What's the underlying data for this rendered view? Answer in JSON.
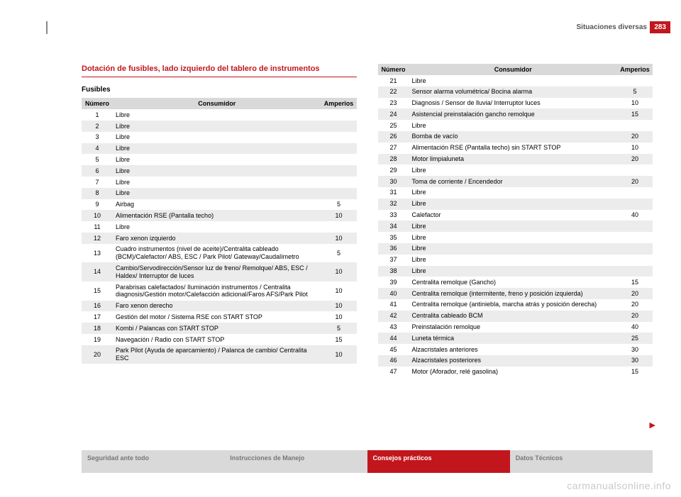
{
  "page": {
    "number": "283",
    "section": "Situaciones diversas"
  },
  "title": "Dotación de fusibles, lado izquierdo del tablero de instrumentos",
  "sub": "Fusibles",
  "headers": {
    "num": "Número",
    "cons": "Consumidor",
    "amp": "Amperios"
  },
  "left_rows": [
    {
      "n": "1",
      "c": "Libre",
      "a": ""
    },
    {
      "n": "2",
      "c": "Libre",
      "a": ""
    },
    {
      "n": "3",
      "c": "Libre",
      "a": ""
    },
    {
      "n": "4",
      "c": "Libre",
      "a": ""
    },
    {
      "n": "5",
      "c": "Libre",
      "a": ""
    },
    {
      "n": "6",
      "c": "Libre",
      "a": ""
    },
    {
      "n": "7",
      "c": "Libre",
      "a": ""
    },
    {
      "n": "8",
      "c": "Libre",
      "a": ""
    },
    {
      "n": "9",
      "c": "Airbag",
      "a": "5"
    },
    {
      "n": "10",
      "c": "Alimentación RSE (Pantalla techo)",
      "a": "10"
    },
    {
      "n": "11",
      "c": "Libre",
      "a": ""
    },
    {
      "n": "12",
      "c": "Faro xenon izquierdo",
      "a": "10"
    },
    {
      "n": "13",
      "c": "Cuadro instrumentos (nivel de aceite)/Centralita cableado (BCM)/Calefactor/ ABS, ESC / Park Pilot/ Gateway/Caudalímetro",
      "a": "5"
    },
    {
      "n": "14",
      "c": "Cambio/Servodirección/Sensor luz de freno/ Remolque/ ABS, ESC / Haldex/ Interruptor de luces",
      "a": "10"
    },
    {
      "n": "15",
      "c": "Parabrisas calefactados/ Iluminación instrumentos / Centralita diagnosis/Gestión motor/Calefacción adicional/Faros AFS/Park Pilot",
      "a": "10"
    },
    {
      "n": "16",
      "c": "Faro xenon derecho",
      "a": "10"
    },
    {
      "n": "17",
      "c": "Gestión del motor / Sistema RSE con START STOP",
      "a": "10"
    },
    {
      "n": "18",
      "c": "Kombi / Palancas con START STOP",
      "a": "5"
    },
    {
      "n": "19",
      "c": "Navegación / Radio con START STOP",
      "a": "15"
    },
    {
      "n": "20",
      "c": "Park Pilot (Ayuda de aparcamiento) / Palanca de cambio/ Centralita ESC",
      "a": "10"
    }
  ],
  "right_rows": [
    {
      "n": "21",
      "c": "Libre",
      "a": ""
    },
    {
      "n": "22",
      "c": "Sensor alarma volumétrica/ Bocina alarma",
      "a": "5"
    },
    {
      "n": "23",
      "c": "Diagnosis / Sensor de lluvia/ Interruptor luces",
      "a": "10"
    },
    {
      "n": "24",
      "c": "Asistencial preinstalación gancho remolque",
      "a": "15"
    },
    {
      "n": "25",
      "c": "Libre",
      "a": ""
    },
    {
      "n": "26",
      "c": "Bomba de vacío",
      "a": "20"
    },
    {
      "n": "27",
      "c": "Alimentación RSE (Pantalla techo) sin START STOP",
      "a": "10"
    },
    {
      "n": "28",
      "c": "Motor limpialuneta",
      "a": "20"
    },
    {
      "n": "29",
      "c": "Libre",
      "a": ""
    },
    {
      "n": "30",
      "c": "Toma de corriente / Encendedor",
      "a": "20"
    },
    {
      "n": "31",
      "c": "Libre",
      "a": ""
    },
    {
      "n": "32",
      "c": "Libre",
      "a": ""
    },
    {
      "n": "33",
      "c": "Calefactor",
      "a": "40"
    },
    {
      "n": "34",
      "c": "Libre",
      "a": ""
    },
    {
      "n": "35",
      "c": "Libre",
      "a": ""
    },
    {
      "n": "36",
      "c": "Libre",
      "a": ""
    },
    {
      "n": "37",
      "c": "Libre",
      "a": ""
    },
    {
      "n": "38",
      "c": "Libre",
      "a": ""
    },
    {
      "n": "39",
      "c": "Centralita remolque (Gancho)",
      "a": "15"
    },
    {
      "n": "40",
      "c": "Centralita remolque (intermitente, freno y posición izquierda)",
      "a": "20"
    },
    {
      "n": "41",
      "c": "Centralita remolque (antiniebla, marcha atrás y posición derecha)",
      "a": "20"
    },
    {
      "n": "42",
      "c": "Centralita cableado BCM",
      "a": "20"
    },
    {
      "n": "43",
      "c": "Preinstalación remolque",
      "a": "40"
    },
    {
      "n": "44",
      "c": "Luneta térmica",
      "a": "25"
    },
    {
      "n": "45",
      "c": "Alzacristales anteriores",
      "a": "30"
    },
    {
      "n": "46",
      "c": "Alzacristales posteriores",
      "a": "30"
    },
    {
      "n": "47",
      "c": "Motor (Aforador, relé gasolina)",
      "a": "15"
    }
  ],
  "footer": {
    "tab1": "Seguridad ante todo",
    "tab2": "Instrucciones de Manejo",
    "tab3": "Consejos prácticos",
    "tab4": "Datos Técnicos"
  },
  "watermark": "carmanualsonline.info",
  "colors": {
    "red": "#c2161d",
    "grey_row": "#ececec",
    "grey_head": "#d9d9d9",
    "footer_grey": "#d9d9d9"
  }
}
